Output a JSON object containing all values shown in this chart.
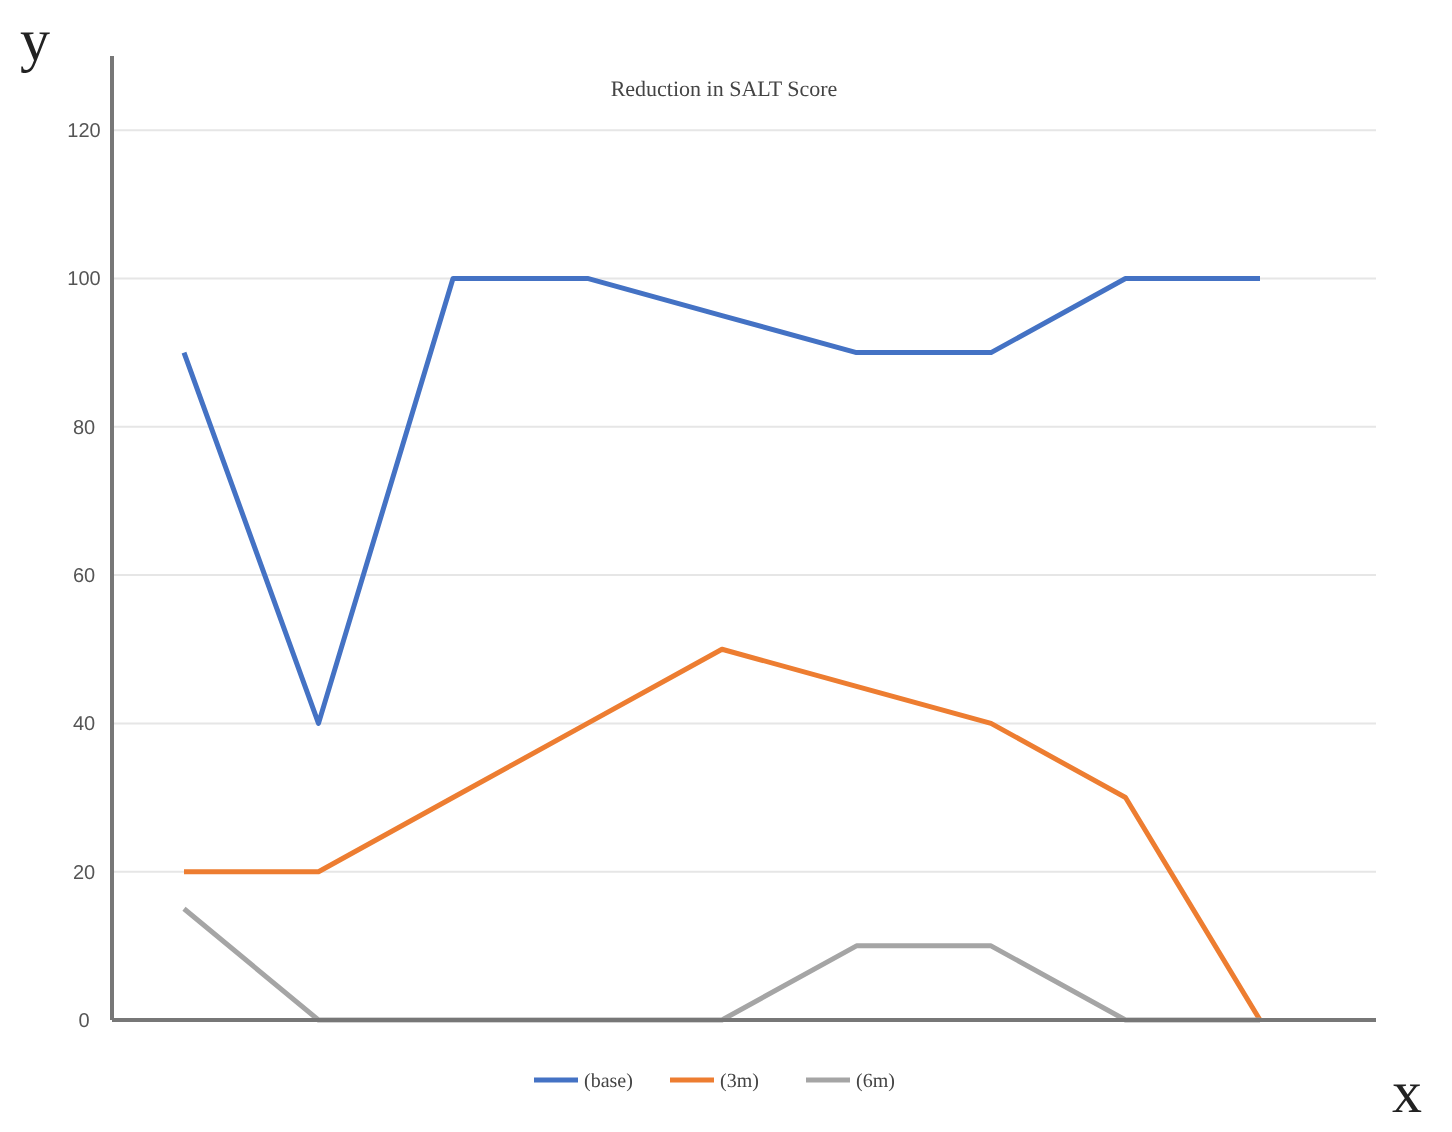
{
  "chart_data": {
    "type": "line",
    "title": "Reduction in SALT Score",
    "xlabel": "x",
    "ylabel": "y",
    "categories": [
      null,
      null,
      null,
      null,
      null,
      null,
      null,
      null,
      null
    ],
    "series": [
      {
        "name": "(base)",
        "color": "#4472c4",
        "values": [
          90,
          40,
          100,
          100,
          95,
          90,
          90,
          100,
          100
        ]
      },
      {
        "name": "(3m)",
        "color": "#ed7d31",
        "values": [
          20,
          20,
          30,
          40,
          50,
          45,
          40,
          30,
          0
        ]
      },
      {
        "name": "(6m)",
        "color": "#a5a5a5",
        "values": [
          15,
          0,
          0,
          0,
          0,
          10,
          10,
          0,
          0
        ]
      }
    ],
    "ylim": [
      0,
      130
    ],
    "yticks": [
      0,
      20,
      40,
      60,
      80,
      100,
      120
    ],
    "grid": "y",
    "legend": "bottom",
    "marker": "none",
    "line_style": "solid"
  }
}
